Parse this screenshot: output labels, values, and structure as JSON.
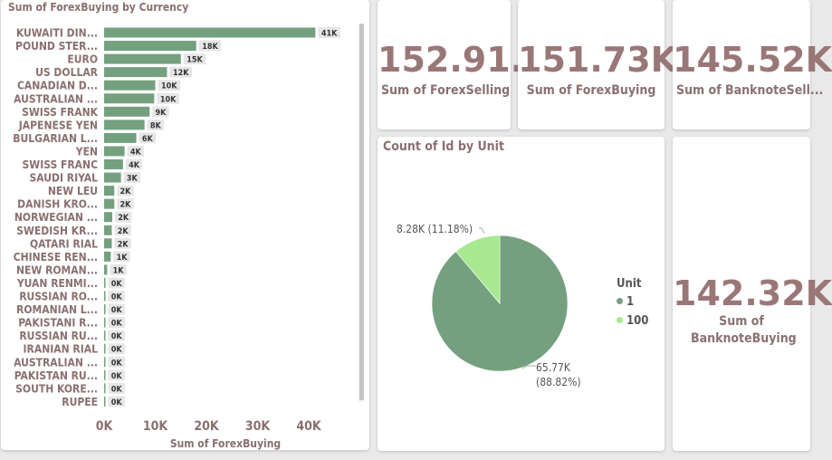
{
  "bar_visual": {
    "title": "Sum of ForexBuying by Currency",
    "xlabel": "Sum of ForexBuying",
    "x_ticks": [
      "0K",
      "10K",
      "20K",
      "30K",
      "40K"
    ]
  },
  "pie_visual": {
    "title": "Count of Id by Unit",
    "legend_title": "Unit",
    "legend_items": [
      "1",
      "100"
    ],
    "label_large_value": "65.77K",
    "label_large_pct": "(88.82%)",
    "label_small": "8.28K (11.18%)"
  },
  "kpis": [
    {
      "value": "152.91...",
      "label": "Sum of ForexSelling"
    },
    {
      "value": "151.73K",
      "label": "Sum of ForexBuying"
    },
    {
      "value": "145.52K",
      "label": "Sum of BanknoteSell..."
    },
    {
      "value": "142.32K",
      "label": "Sum of BanknoteBuying"
    }
  ],
  "colors": {
    "bar": "#74a07f",
    "pie_primary": "#74a07f",
    "pie_secondary": "#a7e891",
    "title_text": "#8a7070",
    "kpi_value": "#9a7777"
  },
  "chart_data": [
    {
      "type": "bar",
      "orientation": "horizontal",
      "title": "Sum of ForexBuying by Currency",
      "xlabel": "Sum of ForexBuying",
      "ylabel": "",
      "xlim": [
        0,
        45000
      ],
      "categories": [
        "KUWAITI DIN...",
        "POUND STER...",
        "EURO",
        "US DOLLAR",
        "CANADIAN D...",
        "AUSTRALIAN ...",
        "SWISS FRANK",
        "JAPENESE YEN",
        "BULGARIAN L...",
        "YEN",
        "SWISS FRANC",
        "SAUDI RIYAL",
        "NEW LEU",
        "DANISH KRO...",
        "NORWEGIAN ...",
        "SWEDISH KR...",
        "QATARI RIAL",
        "CHINESE REN...",
        "NEW ROMAN...",
        "YUAN RENMI...",
        "RUSSIAN RO...",
        "ROMANIAN L...",
        "PAKISTANI R...",
        "RUSSIAN RU...",
        "IRANIAN RIAL",
        "AUSTRALIAN ...",
        "PAKISTAN RU...",
        "SOUTH KORE...",
        "RUPEE"
      ],
      "values": [
        41300,
        18000,
        15000,
        12300,
        10000,
        9800,
        8900,
        7900,
        6300,
        4000,
        3700,
        3300,
        2000,
        2000,
        1600,
        1500,
        1500,
        1300,
        600,
        80,
        60,
        50,
        40,
        40,
        40,
        30,
        20,
        20,
        10
      ],
      "data_labels": [
        "41K",
        "18K",
        "15K",
        "12K",
        "10K",
        "10K",
        "9K",
        "8K",
        "6K",
        "4K",
        "4K",
        "3K",
        "2K",
        "2K",
        "2K",
        "2K",
        "2K",
        "1K",
        "1K",
        "0K",
        "0K",
        "0K",
        "0K",
        "0K",
        "0K",
        "0K",
        "0K",
        "0K",
        "0K"
      ],
      "grid": false,
      "legend": "none"
    },
    {
      "type": "pie",
      "title": "Count of Id by Unit",
      "legend_title": "Unit",
      "legend": "right",
      "slices": [
        {
          "label": "1",
          "value": 65770,
          "percent": 88.82
        },
        {
          "label": "100",
          "value": 8280,
          "percent": 11.18
        }
      ]
    }
  ]
}
